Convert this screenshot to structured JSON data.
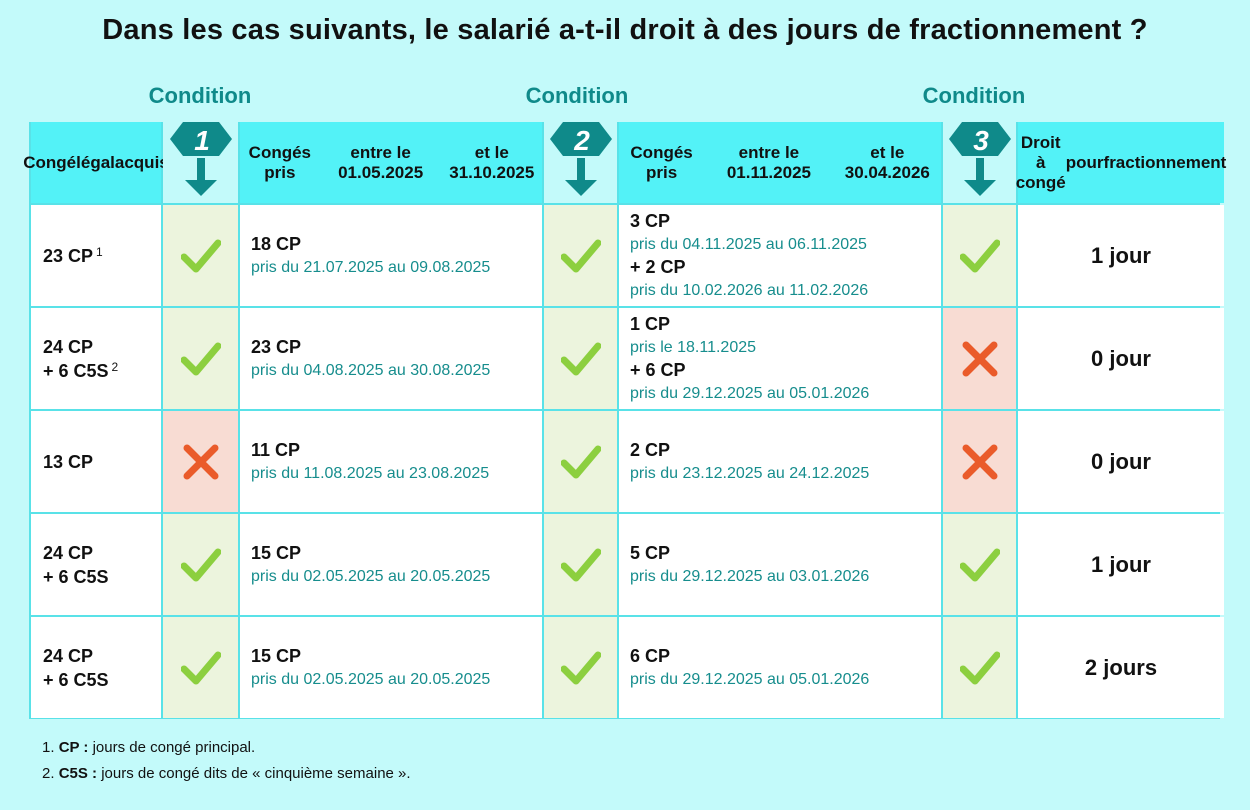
{
  "title": "Dans les cas suivants, le salarié a-t-il droit à des jours de fractionnement ?",
  "condition_label": "Condition",
  "condition_numbers": [
    "1",
    "2",
    "3"
  ],
  "headers": {
    "acquired": [
      "Congé",
      "légal",
      "acquis"
    ],
    "period1": [
      "Congés pris",
      "entre le 01.05.2025",
      "et le 31.10.2025"
    ],
    "period2": [
      "Congés pris",
      "entre le 01.11.2025",
      "et le 30.04.2026"
    ],
    "result": [
      "Droit à congé",
      "pour",
      "fractionnement"
    ]
  },
  "rows": [
    {
      "acquired": [
        "23 CP"
      ],
      "acquired_note": "1",
      "c1": "ok",
      "p1": [
        {
          "cp": "18 CP",
          "dates": "pris du 21.07.2025 au 09.08.2025"
        }
      ],
      "c2": "ok",
      "p2": [
        {
          "cp": "3 CP",
          "dates": "pris du 04.11.2025 au 06.11.2025"
        },
        {
          "cp": "+ 2 CP",
          "dates": "pris du 10.02.2026 au 11.02.2026"
        }
      ],
      "c3": "ok",
      "result": "1 jour"
    },
    {
      "acquired": [
        "24 CP",
        "+ 6 C5S"
      ],
      "acquired_note": "2",
      "c1": "ok",
      "p1": [
        {
          "cp": "23 CP",
          "dates": "pris du 04.08.2025 au 30.08.2025"
        }
      ],
      "c2": "ok",
      "p2": [
        {
          "cp": "1 CP",
          "dates": "pris le 18.11.2025"
        },
        {
          "cp": "+ 6 CP",
          "dates": "pris du 29.12.2025 au 05.01.2026"
        }
      ],
      "c3": "no",
      "result": "0 jour"
    },
    {
      "acquired": [
        "13 CP"
      ],
      "acquired_note": "",
      "c1": "no",
      "p1": [
        {
          "cp": "11 CP",
          "dates": "pris du 11.08.2025 au 23.08.2025"
        }
      ],
      "c2": "ok",
      "p2": [
        {
          "cp": "2 CP",
          "dates": "pris du 23.12.2025 au 24.12.2025"
        }
      ],
      "c3": "no",
      "result": "0 jour"
    },
    {
      "acquired": [
        "24 CP",
        "+ 6 C5S"
      ],
      "acquired_note": "",
      "c1": "ok",
      "p1": [
        {
          "cp": "15 CP",
          "dates": "pris du 02.05.2025 au 20.05.2025"
        }
      ],
      "c2": "ok",
      "p2": [
        {
          "cp": "5 CP",
          "dates": "pris du 29.12.2025 au 03.01.2026"
        }
      ],
      "c3": "ok",
      "result": "1 jour"
    },
    {
      "acquired": [
        "24 CP",
        "+ 6 C5S"
      ],
      "acquired_note": "",
      "c1": "ok",
      "p1": [
        {
          "cp": "15 CP",
          "dates": "pris du 02.05.2025 au 20.05.2025"
        }
      ],
      "c2": "ok",
      "p2": [
        {
          "cp": "6 CP",
          "dates": "pris du 29.12.2025 au 05.01.2026"
        }
      ],
      "c3": "ok",
      "result": "2 jours"
    }
  ],
  "footnotes": [
    {
      "num": "1.",
      "term": "CP :",
      "text": " jours de congé principal."
    },
    {
      "num": "2.",
      "term": "C5S :",
      "text": " jours de congé dits de « cinquième semaine »."
    }
  ],
  "icons": {
    "ok": "check-icon",
    "no": "cross-icon"
  },
  "colors": {
    "accent": "#0f8a8a",
    "header": "#53f2f7",
    "check": "#8ccf3f",
    "cross": "#ea5b2a",
    "ok_bg": "#ecf4dd",
    "no_bg": "#f8dcd3"
  }
}
